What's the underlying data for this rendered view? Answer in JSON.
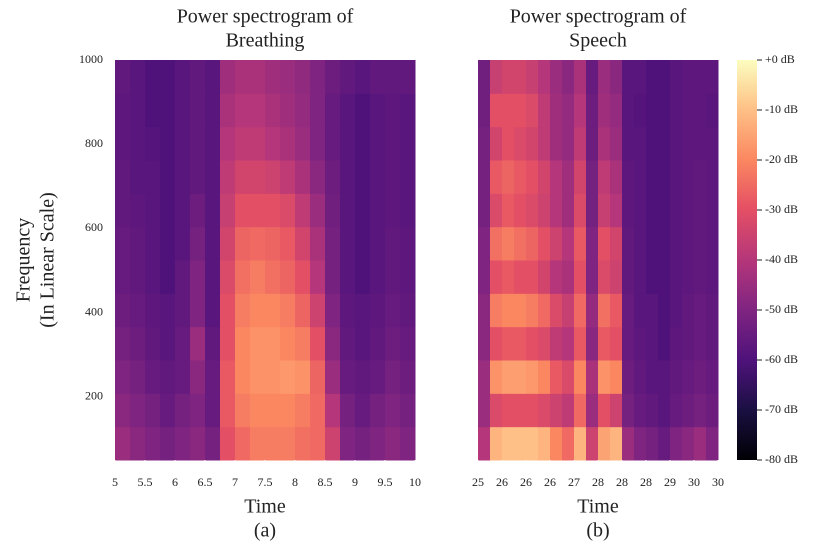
{
  "chart_data": [
    {
      "type": "heatmap",
      "title": [
        "Power spectrogram of",
        "Breathing"
      ],
      "ylabel": [
        "Frequency",
        "(In Linear Scale)"
      ],
      "xlabel": "Time",
      "caption": "(a)",
      "xlim": [
        5,
        10
      ],
      "xticks": [
        5,
        5.5,
        6,
        6.5,
        7,
        7.5,
        8,
        8.5,
        9,
        9.5,
        10
      ],
      "ylim": [
        50,
        1000
      ],
      "yticks": [
        200,
        400,
        600,
        800,
        1000
      ],
      "z": [
        [
          -45,
          -48,
          -50,
          -52,
          -50,
          -48,
          -52,
          -30,
          -25,
          -22,
          -22,
          -22,
          -24,
          -25,
          -35,
          -50,
          -52,
          -50,
          -48,
          -50
        ],
        [
          -48,
          -50,
          -52,
          -55,
          -52,
          -50,
          -55,
          -28,
          -22,
          -20,
          -20,
          -20,
          -22,
          -25,
          -40,
          -52,
          -55,
          -52,
          -50,
          -52
        ],
        [
          -50,
          -52,
          -55,
          -56,
          -55,
          -48,
          -55,
          -28,
          -20,
          -18,
          -18,
          -17,
          -18,
          -26,
          -45,
          -55,
          -56,
          -55,
          -52,
          -54
        ],
        [
          -52,
          -54,
          -56,
          -58,
          -55,
          -45,
          -56,
          -30,
          -20,
          -18,
          -18,
          -20,
          -22,
          -30,
          -48,
          -56,
          -58,
          -56,
          -54,
          -55
        ],
        [
          -54,
          -55,
          -57,
          -58,
          -56,
          -50,
          -58,
          -30,
          -22,
          -20,
          -20,
          -22,
          -26,
          -35,
          -50,
          -57,
          -58,
          -57,
          -55,
          -56
        ],
        [
          -55,
          -56,
          -58,
          -60,
          -56,
          -50,
          -58,
          -32,
          -24,
          -22,
          -24,
          -26,
          -30,
          -40,
          -52,
          -58,
          -60,
          -58,
          -56,
          -57
        ],
        [
          -55,
          -56,
          -58,
          -60,
          -58,
          -52,
          -58,
          -34,
          -26,
          -25,
          -26,
          -28,
          -34,
          -42,
          -52,
          -58,
          -60,
          -58,
          -56,
          -57
        ],
        [
          -56,
          -57,
          -58,
          -60,
          -58,
          -54,
          -58,
          -36,
          -30,
          -30,
          -30,
          -32,
          -38,
          -45,
          -53,
          -58,
          -60,
          -58,
          -57,
          -58
        ],
        [
          -56,
          -58,
          -58,
          -60,
          -58,
          -56,
          -58,
          -38,
          -34,
          -34,
          -35,
          -38,
          -42,
          -48,
          -54,
          -58,
          -60,
          -58,
          -57,
          -58
        ],
        [
          -57,
          -58,
          -59,
          -60,
          -58,
          -56,
          -58,
          -40,
          -38,
          -38,
          -40,
          -42,
          -45,
          -50,
          -55,
          -58,
          -60,
          -58,
          -57,
          -58
        ],
        [
          -57,
          -58,
          -60,
          -60,
          -58,
          -56,
          -58,
          -42,
          -40,
          -40,
          -42,
          -44,
          -46,
          -50,
          -55,
          -58,
          -60,
          -58,
          -57,
          -58
        ],
        [
          -56,
          -58,
          -60,
          -60,
          -58,
          -56,
          -58,
          -44,
          -42,
          -42,
          -44,
          -45,
          -47,
          -50,
          -54,
          -56,
          -58,
          -56,
          -56,
          -56
        ]
      ]
    },
    {
      "type": "heatmap",
      "title": [
        "Power spectrogram of",
        "Speech"
      ],
      "xlabel": "Time",
      "caption": "(b)",
      "xlim": [
        25,
        30
      ],
      "xticks": [
        25,
        {
          "value": 25.5,
          "label": "26"
        },
        26,
        {
          "value": 26.5,
          "label": "26"
        },
        27,
        {
          "value": 27.5,
          "label": "28"
        },
        28,
        {
          "value": 28.5,
          "label": "28"
        },
        29,
        {
          "value": 29.5,
          "label": "30"
        },
        30
      ],
      "ylim": [
        50,
        1000
      ],
      "z": [
        [
          -40,
          -12,
          -10,
          -10,
          -10,
          -12,
          -20,
          -25,
          -12,
          -35,
          -15,
          -12,
          -45,
          -50,
          -52,
          -55,
          -50,
          -48,
          -45,
          -50
        ],
        [
          -45,
          -32,
          -30,
          -30,
          -30,
          -32,
          -35,
          -38,
          -25,
          -45,
          -30,
          -35,
          -52,
          -55,
          -56,
          -58,
          -55,
          -54,
          -52,
          -54
        ],
        [
          -45,
          -18,
          -16,
          -16,
          -17,
          -20,
          -28,
          -32,
          -20,
          -42,
          -18,
          -20,
          -54,
          -56,
          -58,
          -58,
          -56,
          -55,
          -54,
          -55
        ],
        [
          -48,
          -30,
          -28,
          -28,
          -30,
          -32,
          -38,
          -40,
          -28,
          -48,
          -28,
          -30,
          -55,
          -57,
          -58,
          -60,
          -57,
          -56,
          -55,
          -56
        ],
        [
          -48,
          -22,
          -20,
          -20,
          -22,
          -25,
          -32,
          -36,
          -25,
          -46,
          -24,
          -28,
          -55,
          -58,
          -58,
          -60,
          -58,
          -56,
          -55,
          -56
        ],
        [
          -50,
          -30,
          -28,
          -30,
          -30,
          -34,
          -40,
          -42,
          -30,
          -50,
          -32,
          -35,
          -56,
          -58,
          -60,
          -60,
          -58,
          -57,
          -56,
          -57
        ],
        [
          -50,
          -24,
          -22,
          -24,
          -26,
          -30,
          -35,
          -40,
          -28,
          -50,
          -30,
          -34,
          -56,
          -58,
          -60,
          -60,
          -58,
          -57,
          -56,
          -57
        ],
        [
          -52,
          -32,
          -28,
          -30,
          -32,
          -35,
          -40,
          -44,
          -32,
          -52,
          -36,
          -40,
          -57,
          -58,
          -60,
          -60,
          -58,
          -57,
          -56,
          -57
        ],
        [
          -52,
          -28,
          -26,
          -28,
          -30,
          -34,
          -40,
          -44,
          -34,
          -52,
          -38,
          -42,
          -57,
          -58,
          -60,
          -60,
          -58,
          -57,
          -56,
          -57
        ],
        [
          -52,
          -34,
          -30,
          -32,
          -34,
          -38,
          -44,
          -46,
          -38,
          -54,
          -42,
          -45,
          -58,
          -58,
          -60,
          -60,
          -58,
          -57,
          -57,
          -57
        ],
        [
          -53,
          -30,
          -30,
          -30,
          -32,
          -38,
          -44,
          -46,
          -40,
          -54,
          -44,
          -46,
          -58,
          -59,
          -60,
          -60,
          -58,
          -57,
          -57,
          -58
        ],
        [
          -53,
          -36,
          -34,
          -34,
          -36,
          -40,
          -45,
          -48,
          -42,
          -55,
          -45,
          -48,
          -58,
          -58,
          -60,
          -60,
          -58,
          -57,
          -57,
          -57
        ]
      ]
    }
  ],
  "colorbar": {
    "colormap": "magma",
    "lim": [
      -80,
      0
    ],
    "ticks": [
      {
        "value": 0,
        "label": "+0 dB"
      },
      {
        "value": -10,
        "label": "-10 dB"
      },
      {
        "value": -20,
        "label": "-20 dB"
      },
      {
        "value": -30,
        "label": "-30 dB"
      },
      {
        "value": -40,
        "label": "-40 dB"
      },
      {
        "value": -50,
        "label": "-50 dB"
      },
      {
        "value": -60,
        "label": "-60 dB"
      },
      {
        "value": -70,
        "label": "-70 dB"
      },
      {
        "value": -80,
        "label": "-80 dB"
      }
    ]
  }
}
